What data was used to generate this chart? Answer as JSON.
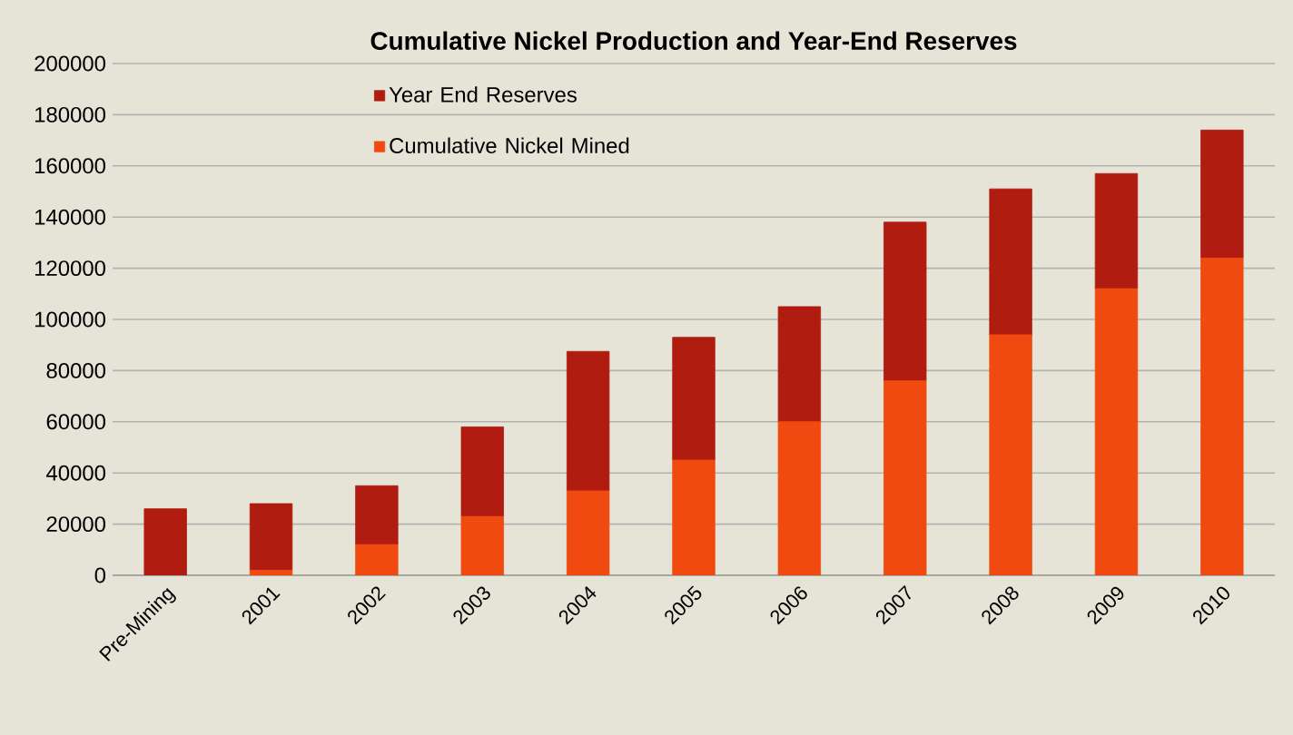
{
  "chart_data": {
    "type": "bar",
    "title": "Cumulative Nickel Production and Year-End Reserves",
    "categories": [
      "Pre-Mining",
      "2001",
      "2002",
      "2003",
      "2004",
      "2005",
      "2006",
      "2007",
      "2008",
      "2009",
      "2010"
    ],
    "stacked": true,
    "series": [
      {
        "name": "Cumulative Nickel Mined",
        "color": "#f04a10",
        "values": [
          0,
          2000,
          12000,
          23000,
          33000,
          45000,
          60000,
          76000,
          94000,
          112000,
          124000
        ]
      },
      {
        "name": "Year End Reserves",
        "color": "#b01c10",
        "values": [
          26000,
          26000,
          23000,
          35000,
          54500,
          48000,
          45000,
          62000,
          57000,
          45000,
          50000
        ]
      }
    ],
    "ylim": [
      0,
      200000
    ],
    "yticks": [
      0,
      20000,
      40000,
      60000,
      80000,
      100000,
      120000,
      140000,
      160000,
      180000,
      200000
    ],
    "grid": "y",
    "legend": "top left"
  }
}
